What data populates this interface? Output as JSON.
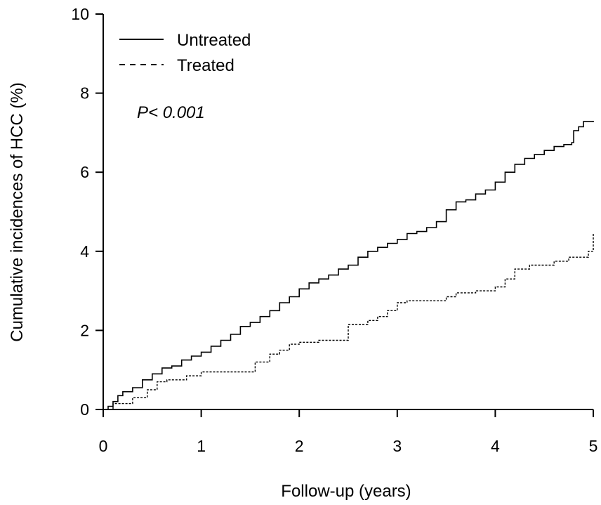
{
  "chart_data": {
    "type": "line",
    "title": "",
    "xlabel": "Follow-up (years)",
    "ylabel": "Cumulative incidences of HCC (%)",
    "xlim": [
      0,
      5
    ],
    "ylim": [
      0,
      10
    ],
    "x_ticks": [
      0,
      1,
      2,
      3,
      4,
      5
    ],
    "y_ticks": [
      0,
      2,
      4,
      6,
      8,
      10
    ],
    "grid": false,
    "legend_position": "top-left",
    "annotation": "P< 0.001",
    "series": [
      {
        "name": "Untreated",
        "line_style": "solid",
        "color": "#000000",
        "x": [
          0,
          0.05,
          0.1,
          0.15,
          0.2,
          0.3,
          0.4,
          0.5,
          0.6,
          0.7,
          0.8,
          0.9,
          1.0,
          1.1,
          1.2,
          1.3,
          1.4,
          1.5,
          1.6,
          1.7,
          1.8,
          1.9,
          2.0,
          2.1,
          2.2,
          2.3,
          2.4,
          2.5,
          2.6,
          2.7,
          2.8,
          2.9,
          3.0,
          3.1,
          3.2,
          3.3,
          3.4,
          3.5,
          3.6,
          3.7,
          3.8,
          3.9,
          4.0,
          4.1,
          4.2,
          4.3,
          4.4,
          4.5,
          4.6,
          4.7,
          4.78,
          4.8,
          4.85,
          4.9,
          5.0
        ],
        "y": [
          0,
          0.08,
          0.2,
          0.35,
          0.45,
          0.55,
          0.75,
          0.9,
          1.05,
          1.1,
          1.25,
          1.35,
          1.45,
          1.6,
          1.75,
          1.9,
          2.1,
          2.2,
          2.35,
          2.5,
          2.7,
          2.85,
          3.05,
          3.2,
          3.3,
          3.4,
          3.55,
          3.65,
          3.85,
          4.0,
          4.1,
          4.2,
          4.3,
          4.45,
          4.5,
          4.6,
          4.75,
          5.05,
          5.25,
          5.3,
          5.45,
          5.55,
          5.75,
          6.0,
          6.2,
          6.35,
          6.45,
          6.55,
          6.65,
          6.7,
          6.75,
          7.05,
          7.15,
          7.28,
          7.3
        ]
      },
      {
        "name": "Treated",
        "line_style": "dashed",
        "color": "#000000",
        "x": [
          0,
          0.1,
          0.3,
          0.45,
          0.55,
          0.65,
          0.85,
          1.0,
          1.4,
          1.55,
          1.7,
          1.8,
          1.9,
          2.0,
          2.2,
          2.45,
          2.5,
          2.7,
          2.8,
          2.9,
          3.0,
          3.1,
          3.5,
          3.6,
          3.8,
          4.0,
          4.1,
          4.2,
          4.35,
          4.6,
          4.75,
          4.95,
          5.0
        ],
        "y": [
          0,
          0.15,
          0.3,
          0.5,
          0.7,
          0.75,
          0.85,
          0.95,
          0.95,
          1.2,
          1.4,
          1.5,
          1.65,
          1.7,
          1.75,
          1.75,
          2.15,
          2.25,
          2.35,
          2.5,
          2.7,
          2.75,
          2.85,
          2.95,
          3.0,
          3.1,
          3.3,
          3.55,
          3.65,
          3.75,
          3.85,
          4.0,
          4.45
        ]
      }
    ]
  }
}
